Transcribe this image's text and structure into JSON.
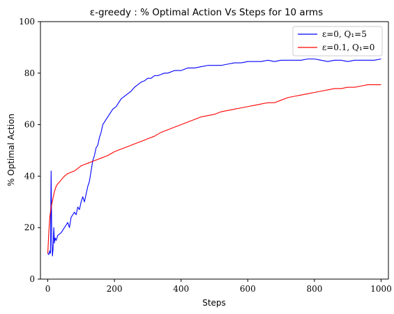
{
  "chart_data": {
    "type": "line",
    "title": "ε-greedy : % Optimal Action Vs Steps for 10 arms",
    "xlabel": "Steps",
    "ylabel": "% Optimal Action",
    "xlim": [
      -22,
      1022
    ],
    "ylim": [
      0,
      100
    ],
    "xticks": [
      0,
      200,
      400,
      600,
      800,
      1000
    ],
    "yticks": [
      0,
      20,
      40,
      60,
      80,
      100
    ],
    "grid": false,
    "legend_position": "top-right",
    "series": [
      {
        "name": "ε=0, Q₁=5",
        "color": "#0000ff",
        "x": [
          0,
          3,
          6,
          8,
          10,
          12,
          14,
          16,
          18,
          20,
          22,
          25,
          30,
          35,
          40,
          45,
          50,
          55,
          60,
          65,
          70,
          75,
          80,
          85,
          90,
          95,
          100,
          105,
          110,
          115,
          120,
          125,
          130,
          135,
          140,
          145,
          150,
          155,
          160,
          165,
          170,
          175,
          180,
          185,
          190,
          195,
          200,
          205,
          210,
          215,
          220,
          230,
          240,
          250,
          260,
          270,
          280,
          290,
          300,
          310,
          320,
          330,
          340,
          350,
          360,
          380,
          400,
          420,
          440,
          460,
          480,
          500,
          520,
          540,
          560,
          580,
          600,
          620,
          640,
          660,
          680,
          700,
          720,
          740,
          760,
          780,
          800,
          820,
          840,
          860,
          880,
          900,
          920,
          940,
          960,
          980,
          1000
        ],
        "y": [
          10,
          9.5,
          11,
          10,
          42,
          15,
          9,
          12,
          20,
          14,
          16,
          15,
          17,
          17.5,
          18,
          19,
          20,
          21,
          22,
          20,
          24,
          25,
          26,
          25,
          28,
          27,
          30,
          32,
          30,
          33,
          36,
          38,
          42,
          46,
          48,
          51,
          52,
          55,
          57,
          60,
          61,
          62,
          63,
          64,
          65,
          66,
          66.5,
          67,
          68,
          69,
          70,
          71,
          72,
          73,
          74.5,
          75.5,
          76.5,
          77,
          78,
          78,
          79,
          79,
          79.5,
          80,
          80,
          81,
          81,
          82,
          82,
          82.5,
          83,
          83,
          83,
          83.5,
          84,
          84,
          84.5,
          84.5,
          84.5,
          85,
          84.5,
          85,
          85,
          85,
          85,
          85.5,
          85.5,
          85,
          84.5,
          85,
          85,
          84.5,
          85,
          85,
          85,
          85,
          85.5
        ]
      },
      {
        "name": "ε=0.1, Q₁=0",
        "color": "#ff0000",
        "x": [
          0,
          3,
          6,
          10,
          15,
          20,
          25,
          30,
          40,
          50,
          60,
          70,
          80,
          90,
          100,
          110,
          120,
          140,
          160,
          180,
          200,
          220,
          240,
          260,
          280,
          300,
          320,
          340,
          360,
          380,
          400,
          420,
          440,
          460,
          480,
          500,
          520,
          540,
          560,
          580,
          600,
          620,
          640,
          660,
          680,
          700,
          720,
          740,
          760,
          780,
          800,
          820,
          840,
          860,
          880,
          900,
          920,
          940,
          960,
          980,
          1000
        ],
        "y": [
          10,
          18,
          24,
          28,
          31,
          34,
          36,
          37,
          38.5,
          40,
          41,
          41.5,
          42,
          43,
          44,
          44.5,
          45,
          46,
          47,
          48,
          49.5,
          50.5,
          51.5,
          52.5,
          53.5,
          54.5,
          55.5,
          57,
          58,
          59,
          60,
          61,
          62,
          63,
          63.5,
          64,
          65,
          65.5,
          66,
          66.5,
          67,
          67.5,
          68,
          68.5,
          68.5,
          69.5,
          70.5,
          71,
          71.5,
          72,
          72.5,
          73,
          73.5,
          74,
          74,
          74.5,
          74.5,
          75,
          75.5,
          75.5,
          75.5
        ]
      }
    ]
  }
}
